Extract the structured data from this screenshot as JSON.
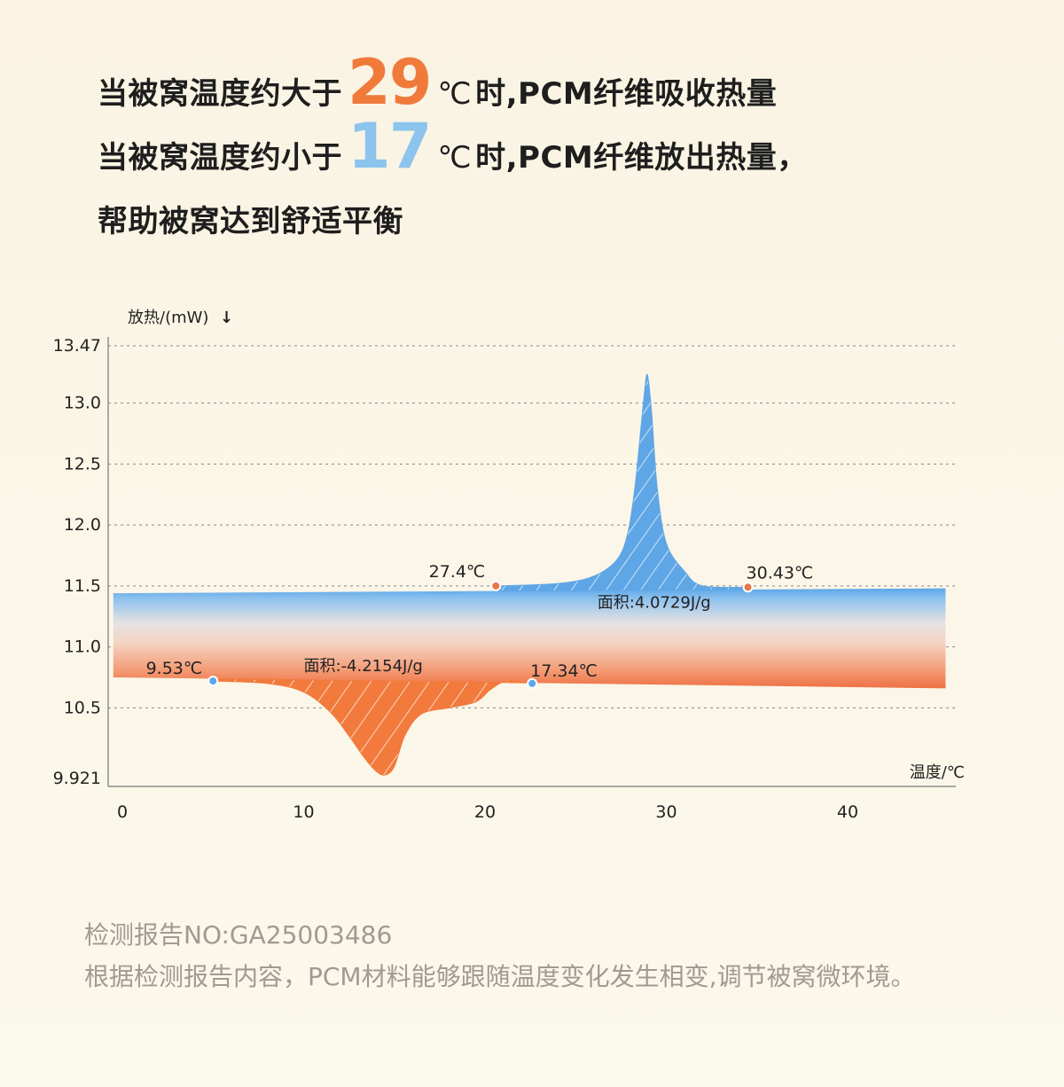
{
  "headline": {
    "line1": {
      "prefix": "当被窝温度约大于",
      "number": "29",
      "unit": "℃",
      "suffix": "时,PCM纤维吸收热量"
    },
    "line2": {
      "prefix": "当被窝温度约小于",
      "number": "17",
      "unit": "℃",
      "suffix": "时,PCM纤维放出热量，"
    },
    "line3": "帮助被窝达到舒适平衡"
  },
  "colors": {
    "hot": "#f07a3a",
    "cold": "#8cc4ee",
    "blue_peak": "#5fa6e6",
    "orange_peak": "#f27a3c"
  },
  "chart_data": {
    "type": "area",
    "ylabel": "放热/(mW)",
    "ylabel_arrow": "↓",
    "xlabel": "温度/℃",
    "x_ticks": [
      "0",
      "10",
      "20",
      "30",
      "40"
    ],
    "y_ticks": [
      "13.47",
      "13.0",
      "12.5",
      "12.0",
      "11.5",
      "11.0",
      "10.5",
      "9.921"
    ],
    "x_range": [
      0,
      46.5
    ],
    "y_range": [
      9.921,
      13.47
    ],
    "grid": "dashed horizontal",
    "series": [
      {
        "curve": "heating",
        "color": "#5fa6e6",
        "baseline": {
          "x": [
            -0.5,
            45.4
          ],
          "y": [
            11.44,
            11.48
          ]
        },
        "x": [
          20.6,
          24.0,
          26.0,
          27.3,
          27.9,
          28.3,
          28.6,
          28.8,
          28.9,
          29.0,
          29.2,
          29.5,
          30.0,
          31.0,
          32.0,
          34.5
        ],
        "y": [
          11.5,
          11.52,
          11.58,
          11.72,
          11.95,
          12.35,
          12.8,
          13.1,
          13.22,
          13.2,
          12.9,
          12.3,
          11.85,
          11.62,
          11.5,
          11.49
        ],
        "markers": [
          {
            "x": 20.6,
            "y": 11.5,
            "label": "27.4℃"
          },
          {
            "x": 34.5,
            "y": 11.49,
            "label": "30.43℃"
          }
        ],
        "annotation": "面积:4.0729J/g"
      },
      {
        "curve": "cooling",
        "color": "#f27a3c",
        "baseline": {
          "x": [
            -0.5,
            45.4
          ],
          "y": [
            10.75,
            10.66
          ]
        },
        "x": [
          5.0,
          8.0,
          10.0,
          11.5,
          12.5,
          13.3,
          14.0,
          14.5,
          15.0,
          15.6,
          16.5,
          18.0,
          19.5,
          20.3,
          21.2,
          22.6
        ],
        "y": [
          10.72,
          10.7,
          10.63,
          10.46,
          10.27,
          10.1,
          9.98,
          9.95,
          10.02,
          10.28,
          10.45,
          10.5,
          10.55,
          10.65,
          10.72,
          10.7
        ],
        "markers": [
          {
            "x": 5.0,
            "y": 10.72,
            "label": "9.53℃"
          },
          {
            "x": 22.6,
            "y": 10.7,
            "label": "17.34℃"
          }
        ],
        "annotation": "面积:-4.2154J/g"
      }
    ]
  },
  "footer": {
    "line1": "检测报告NO:GA25003486",
    "line2": "根据检测报告内容，PCM材料能够跟随温度变化发生相变,调节被窝微环境。"
  }
}
